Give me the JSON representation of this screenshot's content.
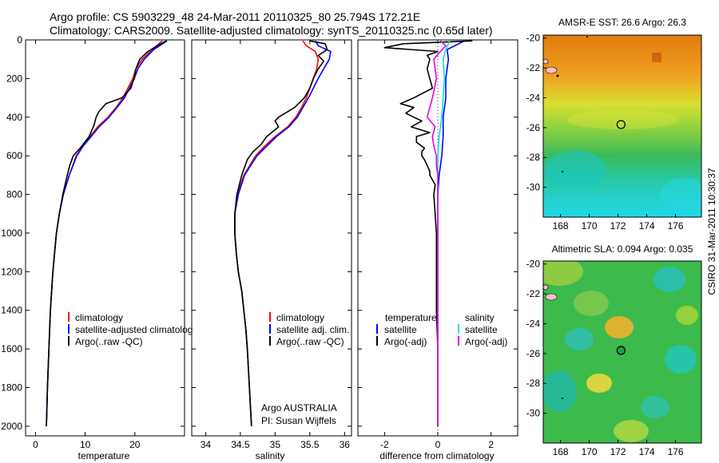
{
  "header": {
    "line1": "Argo profile: CS 5903229_48 24-Mar-2011 20110325_80 25.794S 172.21E",
    "line2": "Climatology: CARS2009. Satellite-adjusted climatology: synTS_20110325.nc (0.65d later)"
  },
  "footer": {
    "credit_line1": "Argo AUSTRALIA",
    "credit_line2": "PI: Susan Wijffels",
    "stamp": "CSIRO 31-Mar-2011 10:30:37"
  },
  "colors": {
    "climatology": "#ff0000",
    "satellite": "#0000ff",
    "argo": "#000000",
    "sal_satellite": "#00e5e5",
    "sal_argo": "#e600e6"
  },
  "chart_data": [
    {
      "id": "temperature",
      "type": "line",
      "xlabel": "temperature",
      "ylabel": "",
      "xlim": [
        -2,
        30
      ],
      "ylim": [
        2050,
        0
      ],
      "xticks": [
        0,
        10,
        20
      ],
      "yticks": [
        0,
        200,
        400,
        600,
        800,
        1000,
        1200,
        1400,
        1600,
        1800,
        2000
      ],
      "legend": [
        "climatology",
        "satellite-adjusted climatolog",
        "Argo(..raw -QC)"
      ],
      "series": [
        {
          "name": "climatology",
          "color": "#ff0000",
          "depth": [
            5,
            50,
            100,
            150,
            200,
            250,
            300,
            350,
            400,
            450,
            500,
            550,
            600,
            700,
            800,
            900,
            1000,
            1200,
            1400,
            1600,
            1800,
            2000
          ],
          "values": [
            25.5,
            23.5,
            21.5,
            20.2,
            19.6,
            18.6,
            17.6,
            16.2,
            14.6,
            12.5,
            11.0,
            9.5,
            8.2,
            6.8,
            5.6,
            4.8,
            4.2,
            3.5,
            3.0,
            2.7,
            2.4,
            2.2
          ]
        },
        {
          "name": "satellite-adjusted climatolog",
          "color": "#0000ff",
          "depth": [
            5,
            50,
            100,
            150,
            200,
            250,
            300,
            350,
            400,
            450,
            500,
            550,
            600,
            700,
            800,
            900,
            1000,
            1200,
            1400,
            1600,
            1800,
            2000
          ],
          "values": [
            26.5,
            23.8,
            21.9,
            20.6,
            19.9,
            18.9,
            17.9,
            16.4,
            14.8,
            12.8,
            11.2,
            9.6,
            8.3,
            6.8,
            5.6,
            4.8,
            4.2,
            3.5,
            3.0,
            2.7,
            2.4,
            2.2
          ]
        },
        {
          "name": "Argo(..raw -QC)",
          "color": "#000000",
          "depth": [
            5,
            30,
            60,
            100,
            150,
            200,
            250,
            300,
            330,
            370,
            400,
            440,
            470,
            500,
            520,
            560,
            600,
            650,
            700,
            800,
            900,
            1000,
            1200,
            1400,
            1600,
            1800,
            2000
          ],
          "values": [
            26.3,
            24.5,
            22.6,
            21.0,
            20.2,
            19.8,
            19.2,
            17.4,
            14.2,
            12.8,
            12.2,
            11.8,
            11.3,
            10.8,
            10.2,
            9.0,
            7.6,
            6.9,
            6.4,
            5.5,
            4.8,
            4.2,
            3.5,
            3.0,
            2.7,
            2.4,
            2.2
          ]
        }
      ]
    },
    {
      "id": "salinity",
      "type": "line",
      "xlabel": "salinity",
      "xlim": [
        33.8,
        36.1
      ],
      "ylim": [
        2050,
        0
      ],
      "xticks": [
        34,
        34.5,
        35,
        35.5,
        36
      ],
      "legend": [
        "climatology",
        "satellite adj. clim.",
        "Argo(..raw -QC)"
      ],
      "series": [
        {
          "name": "climatology",
          "color": "#ff0000",
          "depth": [
            5,
            30,
            60,
            100,
            150,
            200,
            250,
            300,
            350,
            400,
            450,
            500,
            550,
            600,
            700,
            800,
            900,
            1000,
            1100,
            1200,
            1300,
            1400,
            1500,
            1600,
            1800,
            2000
          ],
          "values": [
            35.4,
            35.45,
            35.58,
            35.62,
            35.6,
            35.55,
            35.5,
            35.45,
            35.38,
            35.3,
            35.18,
            35.0,
            34.85,
            34.72,
            34.55,
            34.46,
            34.42,
            34.42,
            34.44,
            34.47,
            34.52,
            34.55,
            34.58,
            34.6,
            34.63,
            34.66
          ]
        },
        {
          "name": "satellite adj. clim.",
          "color": "#0000ff",
          "depth": [
            5,
            30,
            60,
            100,
            150,
            200,
            250,
            300,
            350,
            400,
            450,
            500,
            550,
            600,
            700,
            800,
            900,
            1000,
            1100,
            1200,
            1300,
            1400,
            1500,
            1600,
            1800,
            2000
          ],
          "values": [
            35.58,
            35.62,
            35.8,
            35.78,
            35.7,
            35.62,
            35.55,
            35.48,
            35.4,
            35.32,
            35.2,
            35.02,
            34.88,
            34.74,
            34.56,
            34.47,
            34.42,
            34.42,
            34.44,
            34.47,
            34.52,
            34.55,
            34.58,
            34.6,
            34.63,
            34.66
          ]
        },
        {
          "name": "Argo(..raw -QC)",
          "color": "#000000",
          "depth": [
            5,
            20,
            50,
            80,
            110,
            150,
            200,
            250,
            300,
            350,
            400,
            420,
            450,
            480,
            500,
            540,
            580,
            620,
            700,
            800,
            900,
            1000,
            1100,
            1200,
            1300,
            1400,
            1500,
            1600,
            1800,
            2000
          ],
          "values": [
            35.5,
            35.72,
            35.75,
            35.62,
            35.7,
            35.62,
            35.55,
            35.5,
            35.42,
            35.28,
            35.05,
            35.0,
            35.05,
            34.95,
            34.88,
            34.8,
            34.68,
            34.6,
            34.52,
            34.45,
            34.42,
            34.42,
            34.44,
            34.47,
            34.52,
            34.55,
            34.58,
            34.6,
            34.63,
            34.66
          ]
        }
      ]
    },
    {
      "id": "difference",
      "type": "line",
      "xlabel": "difference from climatology",
      "xlim": [
        -3,
        3
      ],
      "ylim": [
        2050,
        0
      ],
      "xticks": [
        -2,
        0,
        2
      ],
      "legend": {
        "temperature": [
          "temperature",
          "satellite",
          "Argo(-adj)"
        ],
        "salinity": [
          "salinity",
          "satellite",
          "Argo(-adj)"
        ]
      },
      "series": [
        {
          "name": "temperature satellite",
          "color": "#0000ff",
          "depth": [
            5,
            50,
            100,
            200,
            300,
            400,
            500,
            600,
            700,
            800,
            1000,
            1200,
            1500,
            2000
          ],
          "values": [
            1.0,
            0.35,
            0.4,
            0.3,
            0.3,
            0.2,
            0.2,
            0.15,
            0.05,
            0.0,
            0.0,
            0.0,
            0.0,
            0.0
          ]
        },
        {
          "name": "temperature Argo(-adj)",
          "color": "#000000",
          "depth": [
            5,
            20,
            40,
            60,
            80,
            100,
            150,
            200,
            250,
            300,
            330,
            350,
            380,
            400,
            420,
            450,
            480,
            500,
            530,
            560,
            580,
            600,
            620,
            650,
            680,
            700,
            750,
            800,
            900,
            1000,
            1200,
            1400,
            1600,
            1800,
            2000
          ],
          "values": [
            1.3,
            -1.3,
            -2.0,
            0.0,
            -0.4,
            -0.3,
            -0.4,
            -0.3,
            -0.2,
            -0.9,
            -1.4,
            -0.9,
            -1.2,
            -0.9,
            -0.6,
            -1.0,
            -0.3,
            -0.8,
            -0.8,
            -0.5,
            -0.6,
            -0.6,
            -0.5,
            -0.4,
            -0.3,
            -0.3,
            -0.1,
            -0.15,
            -0.1,
            -0.05,
            -0.05,
            -0.05,
            0.0,
            0.0,
            0.0
          ]
        },
        {
          "name": "salinity satellite",
          "color": "#00e5e5",
          "depth": [
            5,
            50,
            100,
            200,
            300,
            400,
            500,
            600,
            800,
            1000,
            1500,
            2000
          ],
          "values": [
            0.45,
            0.3,
            0.2,
            0.25,
            0.2,
            0.15,
            0.05,
            0.0,
            0.0,
            0.0,
            0.0,
            0.0
          ]
        },
        {
          "name": "salinity Argo(-adj)",
          "color": "#e600e6",
          "depth": [
            5,
            30,
            60,
            100,
            200,
            300,
            350,
            400,
            450,
            500,
            550,
            600,
            650,
            700,
            800,
            1000,
            1200,
            1500,
            2000
          ],
          "values": [
            0.1,
            0.3,
            0.1,
            -0.15,
            -0.05,
            -0.2,
            -0.3,
            -0.4,
            -0.1,
            -0.2,
            -0.15,
            -0.05,
            -0.05,
            0.0,
            0.0,
            0.0,
            0.0,
            0.0,
            0.0
          ]
        }
      ]
    },
    {
      "id": "amsr-sst-map",
      "type": "heatmap",
      "title": "AMSR-E SST: 26.6  Argo: 26.3",
      "xlim": [
        166.8,
        177.8
      ],
      "ylim": [
        -32,
        -19.8
      ],
      "xticks": [
        168,
        170,
        172,
        174,
        176
      ],
      "yticks": [
        -20,
        -22,
        -24,
        -26,
        -28,
        -30
      ],
      "marker": {
        "lon": 172.21,
        "lat": -25.794,
        "fill": "none"
      }
    },
    {
      "id": "altimetric-sla-map",
      "type": "heatmap",
      "title": "Altimetric SLA: 0.094  Argo: 0.035",
      "xlim": [
        166.8,
        177.8
      ],
      "ylim": [
        -32,
        -19.8
      ],
      "xticks": [
        168,
        170,
        172,
        174,
        176
      ],
      "yticks": [
        -20,
        -22,
        -24,
        -26,
        -28,
        -30
      ],
      "marker": {
        "lon": 172.21,
        "lat": -25.794,
        "fill": "#22a04a"
      }
    }
  ]
}
